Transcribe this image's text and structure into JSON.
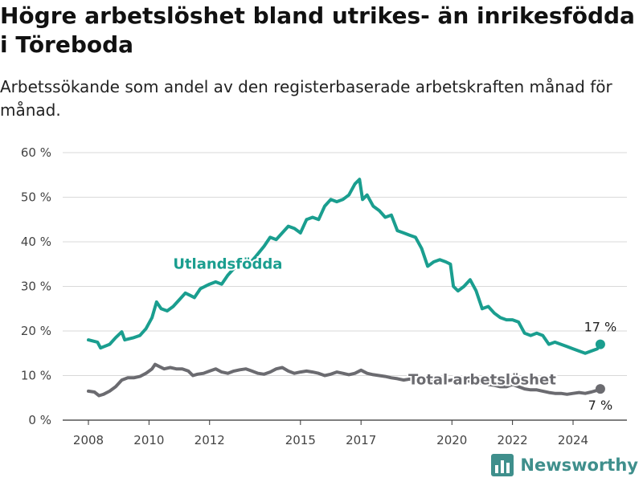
{
  "header": {
    "title": "Högre arbetslöshet bland utrikes- än inrikesfödda i Töreboda",
    "subtitle": "Arbetssökande som andel av den registerbaserade arbetskraften månad för månad."
  },
  "brand": {
    "name": "Newsworthy",
    "icon": "bar-chart-logo-icon"
  },
  "chart_data": {
    "type": "line",
    "ylim": [
      0,
      60
    ],
    "yticks": [
      0,
      10,
      20,
      30,
      40,
      50,
      60
    ],
    "ytick_labels": [
      "0 %",
      "10 %",
      "20 %",
      "30 %",
      "40 %",
      "50 %",
      "60 %"
    ],
    "xlim": [
      2007.6,
      2025.5
    ],
    "xticks": [
      2008,
      2010,
      2012,
      2015,
      2017,
      2020,
      2022,
      2024
    ],
    "xtick_labels": [
      "2008",
      "2010",
      "2012",
      "2015",
      "2017",
      "2020",
      "2022",
      "2024"
    ],
    "grid": true,
    "series": [
      {
        "name": "Utlandsfödda",
        "color": "#1a9e8f",
        "end_label": "17 %",
        "points": [
          [
            2008.0,
            18.0
          ],
          [
            2008.3,
            17.5
          ],
          [
            2008.4,
            16.2
          ],
          [
            2008.7,
            17.0
          ],
          [
            2008.9,
            18.5
          ],
          [
            2009.1,
            19.8
          ],
          [
            2009.2,
            18.0
          ],
          [
            2009.5,
            18.5
          ],
          [
            2009.7,
            19.0
          ],
          [
            2009.9,
            20.5
          ],
          [
            2010.1,
            23.0
          ],
          [
            2010.25,
            26.5
          ],
          [
            2010.4,
            25.0
          ],
          [
            2010.6,
            24.5
          ],
          [
            2010.8,
            25.5
          ],
          [
            2011.0,
            27.0
          ],
          [
            2011.2,
            28.5
          ],
          [
            2011.35,
            28.0
          ],
          [
            2011.5,
            27.5
          ],
          [
            2011.7,
            29.5
          ],
          [
            2012.0,
            30.5
          ],
          [
            2012.2,
            31.0
          ],
          [
            2012.4,
            30.5
          ],
          [
            2012.6,
            32.5
          ],
          [
            2012.8,
            34.0
          ],
          [
            2013.0,
            34.5
          ],
          [
            2013.3,
            35.0
          ],
          [
            2013.5,
            36.5
          ],
          [
            2013.8,
            39.0
          ],
          [
            2014.0,
            41.0
          ],
          [
            2014.2,
            40.5
          ],
          [
            2014.4,
            42.0
          ],
          [
            2014.6,
            43.5
          ],
          [
            2014.8,
            43.0
          ],
          [
            2015.0,
            42.0
          ],
          [
            2015.2,
            45.0
          ],
          [
            2015.4,
            45.5
          ],
          [
            2015.6,
            45.0
          ],
          [
            2015.8,
            48.0
          ],
          [
            2016.0,
            49.5
          ],
          [
            2016.2,
            49.0
          ],
          [
            2016.4,
            49.5
          ],
          [
            2016.6,
            50.5
          ],
          [
            2016.8,
            53.0
          ],
          [
            2016.95,
            54.0
          ],
          [
            2017.05,
            49.5
          ],
          [
            2017.2,
            50.5
          ],
          [
            2017.4,
            48.0
          ],
          [
            2017.6,
            47.0
          ],
          [
            2017.8,
            45.5
          ],
          [
            2018.0,
            46.0
          ],
          [
            2018.2,
            42.5
          ],
          [
            2018.4,
            42.0
          ],
          [
            2018.6,
            41.5
          ],
          [
            2018.8,
            41.0
          ],
          [
            2019.0,
            38.5
          ],
          [
            2019.2,
            34.5
          ],
          [
            2019.4,
            35.5
          ],
          [
            2019.6,
            36.0
          ],
          [
            2019.8,
            35.5
          ],
          [
            2019.95,
            35.0
          ],
          [
            2020.05,
            30.0
          ],
          [
            2020.2,
            29.0
          ],
          [
            2020.4,
            30.0
          ],
          [
            2020.6,
            31.5
          ],
          [
            2020.8,
            29.0
          ],
          [
            2021.0,
            25.0
          ],
          [
            2021.2,
            25.5
          ],
          [
            2021.4,
            24.0
          ],
          [
            2021.6,
            23.0
          ],
          [
            2021.8,
            22.5
          ],
          [
            2022.0,
            22.5
          ],
          [
            2022.2,
            22.0
          ],
          [
            2022.4,
            19.5
          ],
          [
            2022.6,
            19.0
          ],
          [
            2022.8,
            19.5
          ],
          [
            2023.0,
            19.0
          ],
          [
            2023.2,
            17.0
          ],
          [
            2023.4,
            17.5
          ],
          [
            2023.6,
            17.0
          ],
          [
            2023.8,
            16.5
          ],
          [
            2024.0,
            16.0
          ],
          [
            2024.2,
            15.5
          ],
          [
            2024.4,
            15.0
          ],
          [
            2024.6,
            15.5
          ],
          [
            2024.8,
            16.0
          ],
          [
            2024.9,
            17.0
          ]
        ]
      },
      {
        "name": "Total arbetslöshet",
        "color": "#6b6b70",
        "end_label": "7 %",
        "points": [
          [
            2008.0,
            6.5
          ],
          [
            2008.2,
            6.3
          ],
          [
            2008.35,
            5.5
          ],
          [
            2008.5,
            5.8
          ],
          [
            2008.7,
            6.5
          ],
          [
            2008.9,
            7.5
          ],
          [
            2009.1,
            9.0
          ],
          [
            2009.3,
            9.5
          ],
          [
            2009.5,
            9.5
          ],
          [
            2009.7,
            9.8
          ],
          [
            2009.9,
            10.5
          ],
          [
            2010.1,
            11.5
          ],
          [
            2010.2,
            12.5
          ],
          [
            2010.35,
            12.0
          ],
          [
            2010.5,
            11.5
          ],
          [
            2010.7,
            11.8
          ],
          [
            2010.9,
            11.5
          ],
          [
            2011.1,
            11.5
          ],
          [
            2011.3,
            11.0
          ],
          [
            2011.45,
            10.0
          ],
          [
            2011.6,
            10.3
          ],
          [
            2011.8,
            10.5
          ],
          [
            2012.0,
            11.0
          ],
          [
            2012.2,
            11.5
          ],
          [
            2012.4,
            10.8
          ],
          [
            2012.6,
            10.5
          ],
          [
            2012.8,
            11.0
          ],
          [
            2013.0,
            11.3
          ],
          [
            2013.2,
            11.5
          ],
          [
            2013.4,
            11.0
          ],
          [
            2013.6,
            10.5
          ],
          [
            2013.8,
            10.3
          ],
          [
            2014.0,
            10.8
          ],
          [
            2014.2,
            11.5
          ],
          [
            2014.4,
            11.8
          ],
          [
            2014.6,
            11.0
          ],
          [
            2014.8,
            10.5
          ],
          [
            2015.0,
            10.8
          ],
          [
            2015.2,
            11.0
          ],
          [
            2015.4,
            10.8
          ],
          [
            2015.6,
            10.5
          ],
          [
            2015.8,
            10.0
          ],
          [
            2016.0,
            10.3
          ],
          [
            2016.2,
            10.8
          ],
          [
            2016.4,
            10.5
          ],
          [
            2016.6,
            10.2
          ],
          [
            2016.8,
            10.5
          ],
          [
            2017.0,
            11.2
          ],
          [
            2017.2,
            10.5
          ],
          [
            2017.4,
            10.2
          ],
          [
            2017.6,
            10.0
          ],
          [
            2017.8,
            9.8
          ],
          [
            2018.0,
            9.5
          ],
          [
            2018.2,
            9.3
          ],
          [
            2018.4,
            9.0
          ],
          [
            2018.6,
            9.2
          ],
          [
            2018.8,
            9.0
          ],
          [
            2019.0,
            8.8
          ],
          [
            2019.2,
            8.5
          ],
          [
            2019.4,
            8.7
          ],
          [
            2019.6,
            8.5
          ],
          [
            2019.8,
            8.8
          ],
          [
            2020.0,
            9.0
          ],
          [
            2020.2,
            8.8
          ],
          [
            2020.4,
            9.0
          ],
          [
            2020.6,
            8.7
          ],
          [
            2020.8,
            8.5
          ],
          [
            2021.0,
            8.3
          ],
          [
            2021.2,
            8.0
          ],
          [
            2021.4,
            7.8
          ],
          [
            2021.6,
            7.5
          ],
          [
            2021.8,
            7.5
          ],
          [
            2022.0,
            8.0
          ],
          [
            2022.2,
            7.5
          ],
          [
            2022.4,
            7.0
          ],
          [
            2022.6,
            6.8
          ],
          [
            2022.8,
            6.8
          ],
          [
            2023.0,
            6.5
          ],
          [
            2023.2,
            6.2
          ],
          [
            2023.4,
            6.0
          ],
          [
            2023.6,
            6.0
          ],
          [
            2023.8,
            5.8
          ],
          [
            2024.0,
            6.0
          ],
          [
            2024.2,
            6.2
          ],
          [
            2024.4,
            6.0
          ],
          [
            2024.6,
            6.3
          ],
          [
            2024.8,
            6.7
          ],
          [
            2024.9,
            7.0
          ]
        ]
      }
    ]
  }
}
